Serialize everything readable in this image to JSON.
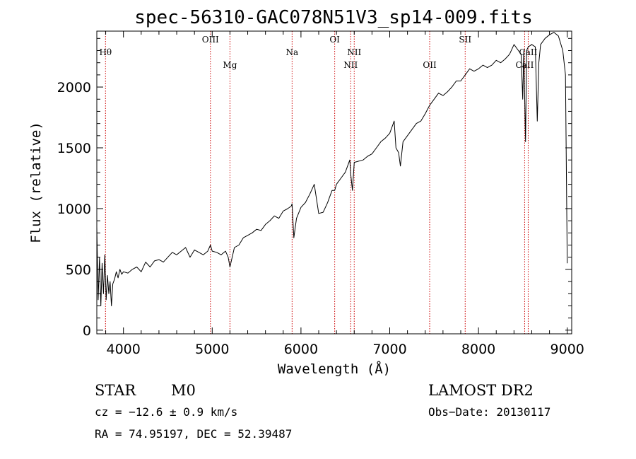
{
  "chart_data": {
    "type": "line",
    "title": "spec-56310-GAC078N51V3_sp14-009.fits",
    "xlabel": "Wavelength (Å)",
    "ylabel": "Flux (relative)",
    "xlim": [
      3700,
      9050
    ],
    "ylim": [
      -30,
      2460
    ],
    "x_ticks": [
      4000,
      5000,
      6000,
      7000,
      8000,
      9000
    ],
    "y_ticks": [
      0,
      500,
      1000,
      1500,
      2000
    ],
    "series": [
      {
        "name": "flux",
        "x": [
          3700,
          3715,
          3730,
          3745,
          3760,
          3775,
          3790,
          3805,
          3820,
          3835,
          3850,
          3865,
          3880,
          3900,
          3920,
          3940,
          3960,
          3980,
          4000,
          4050,
          4100,
          4150,
          4200,
          4250,
          4300,
          4350,
          4400,
          4450,
          4500,
          4550,
          4600,
          4650,
          4700,
          4750,
          4800,
          4850,
          4900,
          4950,
          4980,
          5000,
          5050,
          5100,
          5150,
          5180,
          5200,
          5250,
          5300,
          5350,
          5400,
          5450,
          5500,
          5550,
          5600,
          5650,
          5700,
          5750,
          5800,
          5850,
          5890,
          5900,
          5920,
          5950,
          6000,
          6050,
          6100,
          6150,
          6200,
          6250,
          6300,
          6350,
          6380,
          6400,
          6450,
          6500,
          6550,
          6560,
          6580,
          6600,
          6650,
          6700,
          6750,
          6800,
          6850,
          6900,
          6950,
          7000,
          7050,
          7070,
          7100,
          7120,
          7150,
          7200,
          7250,
          7300,
          7350,
          7400,
          7450,
          7500,
          7550,
          7600,
          7650,
          7700,
          7750,
          7800,
          7850,
          7900,
          7950,
          8000,
          8050,
          8100,
          8150,
          8200,
          8250,
          8300,
          8350,
          8400,
          8450,
          8480,
          8498,
          8510,
          8530,
          8542,
          8560,
          8600,
          8640,
          8662,
          8680,
          8700,
          8750,
          8800,
          8850,
          8900,
          8950,
          8980,
          9000
        ],
        "y": [
          850,
          250,
          600,
          200,
          550,
          300,
          620,
          250,
          450,
          300,
          400,
          200,
          380,
          420,
          480,
          430,
          500,
          460,
          480,
          470,
          500,
          520,
          480,
          560,
          520,
          570,
          580,
          560,
          600,
          640,
          620,
          650,
          680,
          600,
          660,
          640,
          620,
          650,
          700,
          650,
          640,
          620,
          650,
          600,
          520,
          680,
          700,
          760,
          780,
          800,
          830,
          820,
          870,
          900,
          940,
          920,
          980,
          1000,
          1020,
          1040,
          760,
          920,
          1010,
          1050,
          1120,
          1200,
          960,
          970,
          1050,
          1150,
          1150,
          1200,
          1250,
          1300,
          1400,
          1290,
          1150,
          1380,
          1390,
          1400,
          1430,
          1450,
          1500,
          1550,
          1580,
          1620,
          1720,
          1500,
          1460,
          1350,
          1550,
          1600,
          1650,
          1700,
          1720,
          1780,
          1850,
          1900,
          1950,
          1930,
          1960,
          2000,
          2050,
          2050,
          2100,
          2150,
          2130,
          2150,
          2180,
          2160,
          2180,
          2220,
          2200,
          2230,
          2270,
          2350,
          2300,
          2270,
          1900,
          2300,
          1550,
          2300,
          2330,
          2350,
          2330,
          1720,
          2200,
          2350,
          2400,
          2430,
          2450,
          2420,
          2300,
          2100,
          550
        ]
      }
    ],
    "lines": [
      {
        "name": "Hθ",
        "wavelength": 3798,
        "row": 1
      },
      {
        "name": "OIII",
        "wavelength": 4980,
        "row": 0
      },
      {
        "name": "Mg",
        "wavelength": 5200,
        "row": 2
      },
      {
        "name": "Na",
        "wavelength": 5900,
        "row": 1
      },
      {
        "name": "OI",
        "wavelength": 6380,
        "row": 0
      },
      {
        "name": "NII",
        "wavelength": 6560,
        "row": 2
      },
      {
        "name": "NII",
        "wavelength": 6600,
        "row": 1
      },
      {
        "name": "OII",
        "wavelength": 7450,
        "row": 2
      },
      {
        "name": "SII",
        "wavelength": 7850,
        "row": 0
      },
      {
        "name": "CaII",
        "wavelength": 8520,
        "row": 2
      },
      {
        "name": "CaII",
        "wavelength": 8560,
        "row": 1
      }
    ],
    "line_color": "#cc0000"
  },
  "info": {
    "class": "STAR",
    "subclass": "M0",
    "survey": "LAMOST DR2",
    "cz": "cz = −12.6 ± 0.9 km/s",
    "obs_date": "Obs−Date: 20130117",
    "radec": "RA =  74.95197, DEC =  52.39487"
  }
}
